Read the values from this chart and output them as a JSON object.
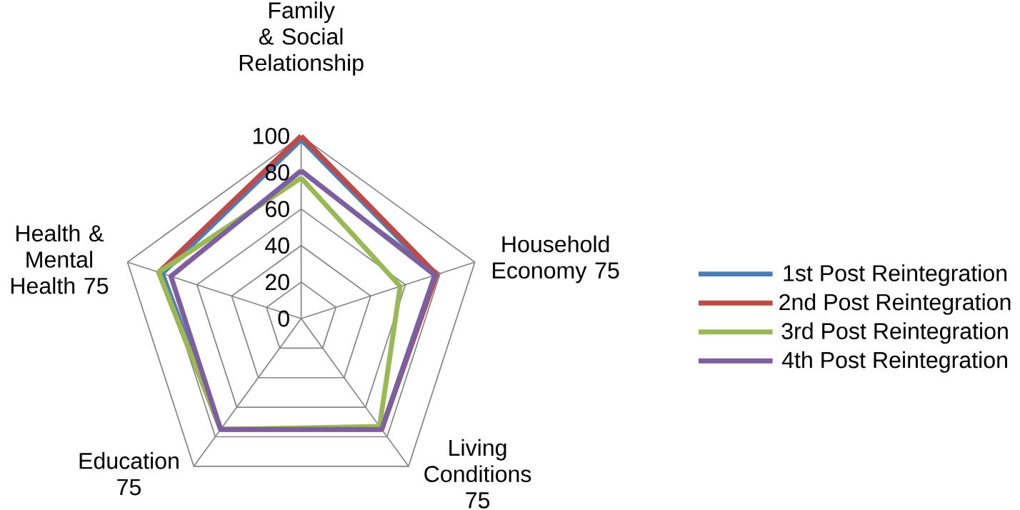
{
  "chart_data": {
    "type": "radar",
    "categories": [
      "Family & Social Relationship",
      "Household Economy 75",
      "Living Conditions 75",
      "Education 75",
      "Health & Mental Health 75"
    ],
    "series": [
      {
        "name": "1st Post Reintegration",
        "color": "#4a7ebb",
        "values": [
          98,
          77,
          75,
          75,
          80
        ]
      },
      {
        "name": "2nd Post Reintegration",
        "color": "#be4b48",
        "values": [
          100,
          78,
          75,
          75,
          82
        ]
      },
      {
        "name": "3rd Post Reintegration",
        "color": "#98b954",
        "values": [
          77,
          57,
          73,
          75,
          82
        ]
      },
      {
        "name": "4th Post Reintegration",
        "color": "#7d5fa0",
        "values": [
          81,
          77,
          75,
          75,
          75
        ]
      }
    ],
    "ylim": [
      0,
      100
    ],
    "yticks": [
      0,
      20,
      40,
      60,
      80,
      100
    ],
    "legend": "right",
    "grid": true
  }
}
